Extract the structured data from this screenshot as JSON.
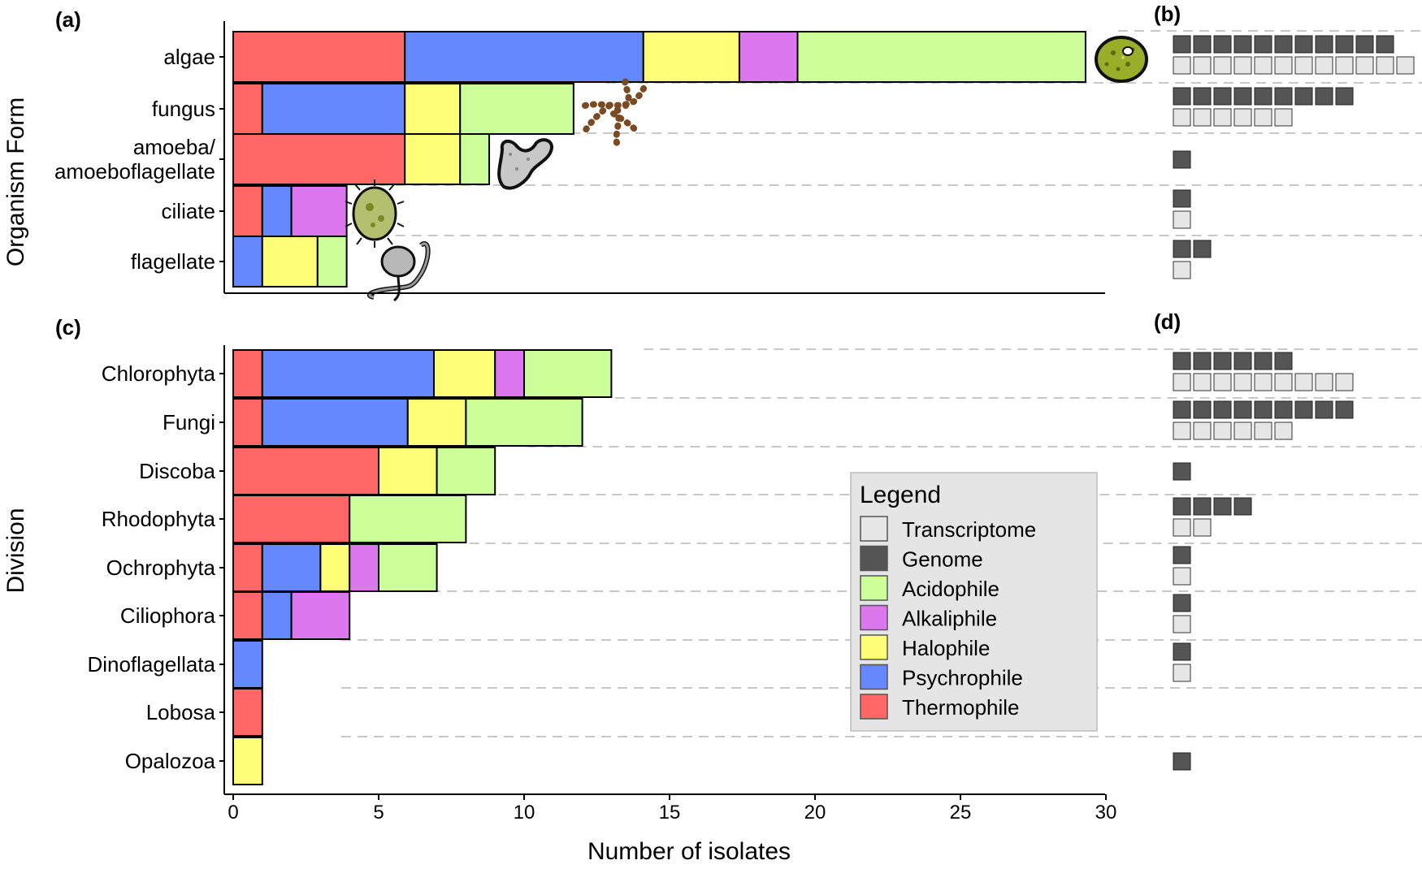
{
  "chart_data": [
    {
      "panel": "(a)",
      "type": "bar",
      "stacked": true,
      "orientation": "horizontal",
      "ylabel": "Organism Form",
      "categories": [
        {
          "label": "algae",
          "lines": [
            "algae"
          ],
          "segments": {
            "Thermophile": 5.9,
            "Psychrophile": 8.2,
            "Halophile": 3.3,
            "Alkaliphile": 2.0,
            "Acidophile": 9.9
          },
          "icon": "algae-cell-icon"
        },
        {
          "label": "fungus",
          "lines": [
            "fungus"
          ],
          "segments": {
            "Thermophile": 1.0,
            "Psychrophile": 4.9,
            "Halophile": 1.9,
            "Alkaliphile": 0,
            "Acidophile": 3.9
          },
          "icon": "fungal-hyphae-icon"
        },
        {
          "label": "amoeba/ amoeboflagellate",
          "lines": [
            "amoeba/",
            "amoeboflagellate"
          ],
          "segments": {
            "Thermophile": 5.9,
            "Psychrophile": 0,
            "Halophile": 1.9,
            "Alkaliphile": 0,
            "Acidophile": 1.0
          },
          "icon": "amoeba-icon"
        },
        {
          "label": "ciliate",
          "lines": [
            "ciliate"
          ],
          "segments": {
            "Thermophile": 1.0,
            "Psychrophile": 1.0,
            "Halophile": 0,
            "Alkaliphile": 1.9,
            "Acidophile": 0
          },
          "icon": "ciliate-icon"
        },
        {
          "label": "flagellate",
          "lines": [
            "flagellate"
          ],
          "segments": {
            "Thermophile": 0,
            "Psychrophile": 1.0,
            "Halophile": 1.9,
            "Alkaliphile": 0,
            "Acidophile": 1.0
          },
          "icon": "flagellate-icon"
        }
      ],
      "xlim": [
        0,
        30
      ]
    },
    {
      "panel": "(b)",
      "type": "table",
      "rows": [
        {
          "category": "algae",
          "Genome": 11,
          "Transcriptome": 12
        },
        {
          "category": "fungus",
          "Genome": 9,
          "Transcriptome": 6
        },
        {
          "category": "amoeba/ amoeboflagellate",
          "Genome": 1,
          "Transcriptome": 0
        },
        {
          "category": "ciliate",
          "Genome": 1,
          "Transcriptome": 1
        },
        {
          "category": "flagellate",
          "Genome": 2,
          "Transcriptome": 1
        }
      ]
    },
    {
      "panel": "(c)",
      "type": "bar",
      "stacked": true,
      "orientation": "horizontal",
      "ylabel": "Division",
      "xlabel": "Number of isolates",
      "xlim": [
        0,
        30
      ],
      "xticks": [
        "0",
        "5",
        "10",
        "15",
        "20",
        "25",
        "30"
      ],
      "categories": [
        {
          "label": "Chlorophyta",
          "segments": {
            "Thermophile": 1,
            "Psychrophile": 5.9,
            "Halophile": 2.1,
            "Alkaliphile": 1,
            "Acidophile": 3
          }
        },
        {
          "label": "Fungi",
          "segments": {
            "Thermophile": 1,
            "Psychrophile": 5,
            "Halophile": 2,
            "Alkaliphile": 0,
            "Acidophile": 4
          }
        },
        {
          "label": "Discoba",
          "segments": {
            "Thermophile": 5,
            "Psychrophile": 0,
            "Halophile": 2,
            "Alkaliphile": 0,
            "Acidophile": 2
          }
        },
        {
          "label": "Rhodophyta",
          "segments": {
            "Thermophile": 4,
            "Psychrophile": 0,
            "Halophile": 0,
            "Alkaliphile": 0,
            "Acidophile": 4
          }
        },
        {
          "label": "Ochrophyta",
          "segments": {
            "Thermophile": 1,
            "Psychrophile": 2,
            "Halophile": 1,
            "Alkaliphile": 1,
            "Acidophile": 2
          }
        },
        {
          "label": "Ciliophora",
          "segments": {
            "Thermophile": 1,
            "Psychrophile": 1,
            "Halophile": 0,
            "Alkaliphile": 2,
            "Acidophile": 0
          }
        },
        {
          "label": "Dinoflagellata",
          "segments": {
            "Thermophile": 0,
            "Psychrophile": 1,
            "Halophile": 0,
            "Alkaliphile": 0,
            "Acidophile": 0
          }
        },
        {
          "label": "Lobosa",
          "segments": {
            "Thermophile": 1,
            "Psychrophile": 0,
            "Halophile": 0,
            "Alkaliphile": 0,
            "Acidophile": 0
          }
        },
        {
          "label": "Opalozoa",
          "segments": {
            "Thermophile": 0,
            "Psychrophile": 0,
            "Halophile": 1,
            "Alkaliphile": 0,
            "Acidophile": 0
          }
        }
      ]
    },
    {
      "panel": "(d)",
      "type": "table",
      "rows": [
        {
          "category": "Chlorophyta",
          "Genome": 6,
          "Transcriptome": 9
        },
        {
          "category": "Fungi",
          "Genome": 9,
          "Transcriptome": 6
        },
        {
          "category": "Discoba",
          "Genome": 1,
          "Transcriptome": 0
        },
        {
          "category": "Rhodophyta",
          "Genome": 4,
          "Transcriptome": 2
        },
        {
          "category": "Ochrophyta",
          "Genome": 1,
          "Transcriptome": 1
        },
        {
          "category": "Ciliophora",
          "Genome": 1,
          "Transcriptome": 1
        },
        {
          "category": "Dinoflagellata",
          "Genome": 1,
          "Transcriptome": 1
        },
        {
          "category": "Lobosa",
          "Genome": 0,
          "Transcriptome": 0
        },
        {
          "category": "Opalozoa",
          "Genome": 1,
          "Transcriptome": 0
        }
      ]
    }
  ],
  "legend": {
    "title": "Legend",
    "placement": "inside panel (c), bottom-right",
    "items": [
      {
        "label": "Transcriptome",
        "color": "#e6e6e6"
      },
      {
        "label": "Genome",
        "color": "#555555"
      },
      {
        "label": "Acidophile",
        "color": "#ccff99"
      },
      {
        "label": "Alkaliphile",
        "color": "#dd77ee"
      },
      {
        "label": "Halophile",
        "color": "#ffff77"
      },
      {
        "label": "Psychrophile",
        "color": "#6688ff"
      },
      {
        "label": "Thermophile",
        "color": "#ff6666"
      }
    ]
  },
  "segment_order": [
    "Thermophile",
    "Psychrophile",
    "Halophile",
    "Alkaliphile",
    "Acidophile"
  ],
  "colors": {
    "Thermophile": "#ff6666",
    "Psychrophile": "#6688ff",
    "Halophile": "#ffff77",
    "Alkaliphile": "#dd77ee",
    "Acidophile": "#ccff99",
    "Genome": "#555555",
    "Transcriptome": "#e6e6e6",
    "legend_background": "#e5e5e5"
  }
}
